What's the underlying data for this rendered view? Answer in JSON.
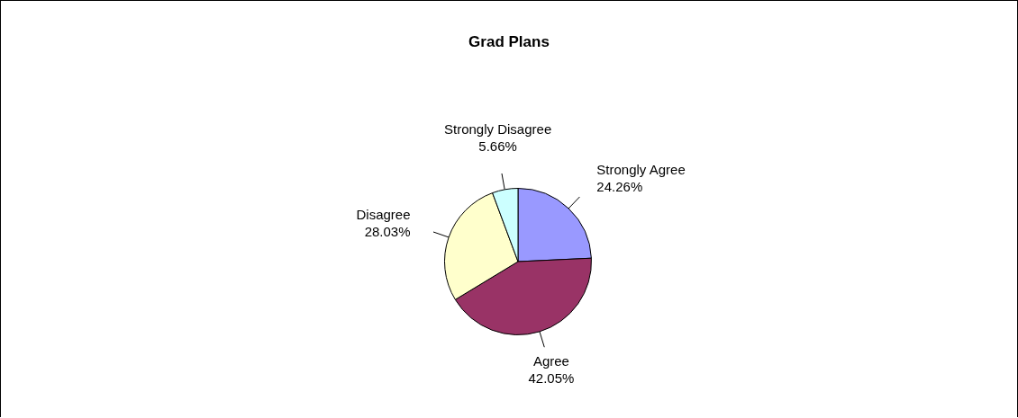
{
  "chart_data": {
    "type": "pie",
    "title": "Grad Plans",
    "categories": [
      "Strongly Agree",
      "Agree",
      "Disagree",
      "Strongly Disagree"
    ],
    "values": [
      24.26,
      42.05,
      28.03,
      5.66
    ],
    "value_labels": [
      "24.26%",
      "42.05%",
      "28.03%",
      "5.66%"
    ],
    "colors": [
      "#9999ff",
      "#993366",
      "#ffffcc",
      "#ccffff"
    ],
    "legend": false
  }
}
